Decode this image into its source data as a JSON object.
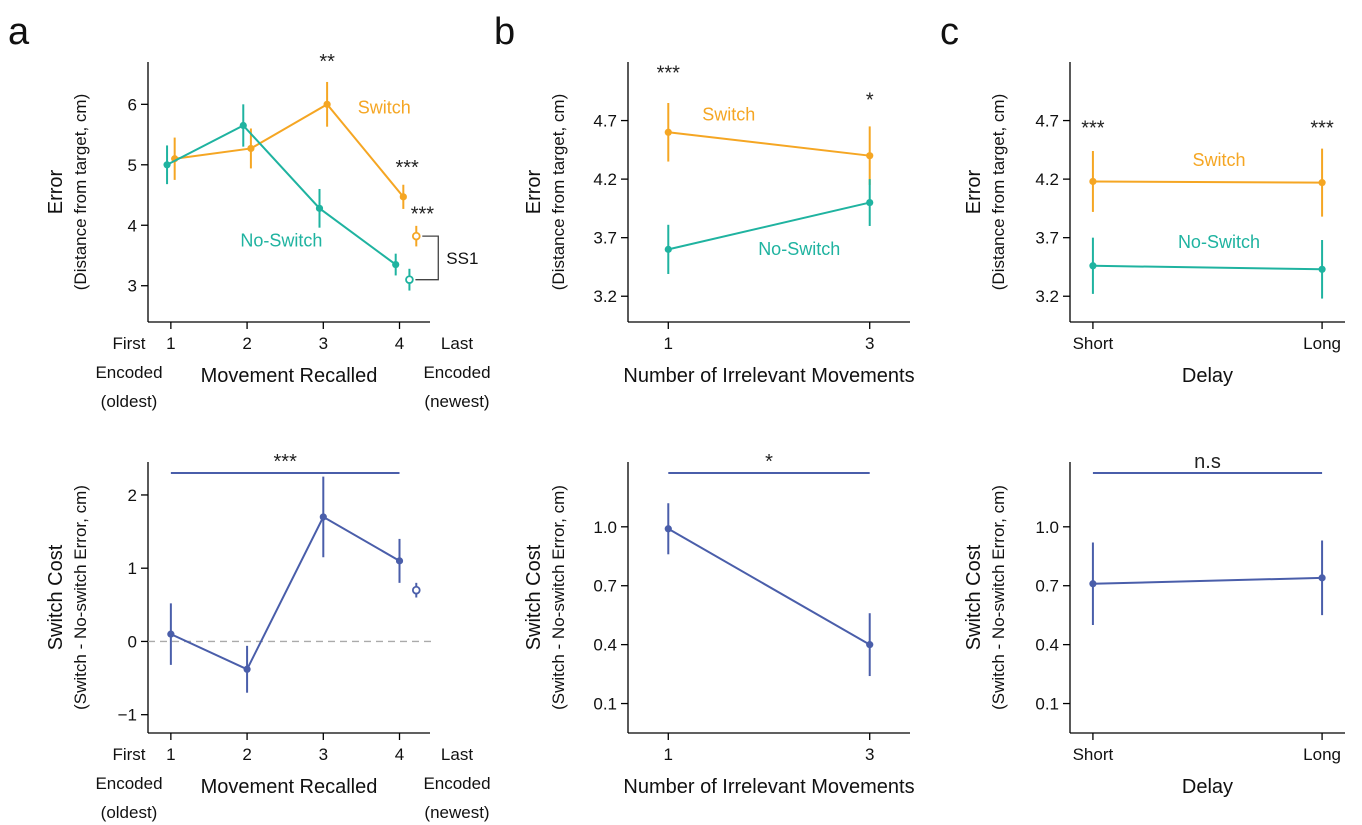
{
  "panel_letters": [
    "a",
    "b",
    "c"
  ],
  "colors": {
    "switch": "#f5a623",
    "noswitch": "#1fb3a0",
    "cost": "#4a5eaa",
    "zero_line": "#aaaaaa"
  },
  "chart_data": [
    {
      "id": "a_top",
      "type": "line",
      "panel": "a",
      "xlabel": "Movement Recalled",
      "ylabel": "Error",
      "ylabel2": "(Distance from target, cm)",
      "x": [
        1,
        2,
        3,
        4
      ],
      "xticks": [
        "1",
        "2",
        "3",
        "4"
      ],
      "xlim": [
        0.7,
        4.4
      ],
      "ylim": [
        2.4,
        6.7
      ],
      "yticks": [
        3,
        4,
        5,
        6
      ],
      "ytick_labels": [
        "3",
        "4",
        "5",
        "6"
      ],
      "extra_x_labels": {
        "left": [
          "First",
          "Encoded",
          "(oldest)"
        ],
        "right": [
          "Last",
          "Encoded",
          "(newest)"
        ]
      },
      "series": [
        {
          "name": "Switch",
          "color": "switch",
          "values": [
            5.1,
            5.27,
            6.0,
            4.47
          ],
          "err": [
            0.35,
            0.33,
            0.37,
            0.2
          ],
          "x_offset": 0.05
        },
        {
          "name": "No-Switch",
          "color": "noswitch",
          "values": [
            5.0,
            5.65,
            4.28,
            3.35
          ],
          "err": [
            0.32,
            0.35,
            0.32,
            0.18
          ],
          "x_offset": -0.05
        }
      ],
      "extra_points": [
        {
          "series": "Switch",
          "x": 4.22,
          "value": 3.82,
          "err": 0.17,
          "open": true
        },
        {
          "series": "No-Switch",
          "x": 4.13,
          "value": 3.1,
          "err": 0.18,
          "open": true
        }
      ],
      "annotations": [
        {
          "text": "**",
          "x": 3.05,
          "y": 6.6
        },
        {
          "text": "***",
          "x": 4.1,
          "y": 4.85
        },
        {
          "text": "***",
          "x": 4.3,
          "y": 4.08
        }
      ],
      "bracket_label": "SS1"
    },
    {
      "id": "a_bottom",
      "type": "line",
      "panel": "a",
      "xlabel": "Movement Recalled",
      "ylabel": "Switch Cost",
      "ylabel2": "(Switch - No-switch Error, cm)",
      "x": [
        1,
        2,
        3,
        4
      ],
      "xticks": [
        "1",
        "2",
        "3",
        "4"
      ],
      "xlim": [
        0.7,
        4.4
      ],
      "ylim": [
        -1.25,
        2.45
      ],
      "yticks": [
        -1,
        0,
        1,
        2
      ],
      "ytick_labels": [
        "−1",
        "0",
        "1",
        "2"
      ],
      "extra_x_labels": {
        "left": [
          "First",
          "Encoded",
          "(oldest)"
        ],
        "right": [
          "Last",
          "Encoded",
          "(newest)"
        ]
      },
      "series": [
        {
          "name": "",
          "color": "cost",
          "values": [
            0.1,
            -0.38,
            1.7,
            1.1
          ],
          "err": [
            0.42,
            0.32,
            0.55,
            0.3
          ]
        }
      ],
      "extra_points": [
        {
          "series": "",
          "x": 4.22,
          "value": 0.7,
          "err": 0.1,
          "open": true
        }
      ],
      "zero_line": true,
      "sig_bar": {
        "label": "***",
        "x1": 1,
        "x2": 4
      }
    },
    {
      "id": "b_top",
      "type": "line",
      "panel": "b",
      "xlabel": "Number of Irrelevant Movements",
      "ylabel": "Error",
      "ylabel2": "(Distance from target, cm)",
      "x": [
        1,
        3
      ],
      "xticks": [
        "1",
        "3"
      ],
      "xlim": [
        0.6,
        3.4
      ],
      "ylim": [
        2.98,
        5.2
      ],
      "yticks": [
        3.2,
        3.7,
        4.2,
        4.7
      ],
      "ytick_labels": [
        "3.2",
        "3.7",
        "4.2",
        "4.7"
      ],
      "series": [
        {
          "name": "Switch",
          "color": "switch",
          "values": [
            4.6,
            4.4
          ],
          "err": [
            0.25,
            0.25
          ]
        },
        {
          "name": "No-Switch",
          "color": "noswitch",
          "values": [
            3.6,
            4.0
          ],
          "err": [
            0.21,
            0.2
          ]
        }
      ],
      "annotations": [
        {
          "text": "***",
          "x": 1.0,
          "y": 5.05
        },
        {
          "text": "*",
          "x": 3.0,
          "y": 4.82
        }
      ]
    },
    {
      "id": "b_bottom",
      "type": "line",
      "panel": "b",
      "xlabel": "Number of Irrelevant Movements",
      "ylabel": "Switch Cost",
      "ylabel2": "(Switch - No-switch Error, cm)",
      "x": [
        1,
        3
      ],
      "xticks": [
        "1",
        "3"
      ],
      "xlim": [
        0.6,
        3.4
      ],
      "ylim": [
        -0.05,
        1.33
      ],
      "yticks": [
        0.1,
        0.4,
        0.7,
        1.0
      ],
      "ytick_labels": [
        "0.1",
        "0.4",
        "0.7",
        "1.0"
      ],
      "series": [
        {
          "name": "",
          "color": "cost",
          "values": [
            0.99,
            0.4
          ],
          "err": [
            0.13,
            0.16
          ]
        }
      ],
      "sig_bar": {
        "label": "*",
        "x1": 1,
        "x2": 3
      }
    },
    {
      "id": "c_top",
      "type": "line",
      "panel": "c",
      "xlabel": "Delay",
      "ylabel": "Error",
      "ylabel2": "(Distance from target, cm)",
      "x": [
        1,
        2
      ],
      "xticks": [
        "Short",
        "Long"
      ],
      "xlim": [
        0.9,
        2.1
      ],
      "ylim": [
        2.98,
        5.2
      ],
      "yticks": [
        3.2,
        3.7,
        4.2,
        4.7
      ],
      "ytick_labels": [
        "3.2",
        "3.7",
        "4.2",
        "4.7"
      ],
      "series": [
        {
          "name": "Switch",
          "color": "switch",
          "values": [
            4.18,
            4.17
          ],
          "err": [
            0.26,
            0.29
          ]
        },
        {
          "name": "No-Switch",
          "color": "noswitch",
          "values": [
            3.46,
            3.43
          ],
          "err": [
            0.24,
            0.25
          ]
        }
      ],
      "annotations": [
        {
          "text": "***",
          "x": 1.0,
          "y": 4.58
        },
        {
          "text": "***",
          "x": 2.0,
          "y": 4.58
        }
      ]
    },
    {
      "id": "c_bottom",
      "type": "line",
      "panel": "c",
      "xlabel": "Delay",
      "ylabel": "Switch Cost",
      "ylabel2": "(Switch - No-switch Error, cm)",
      "x": [
        1,
        2
      ],
      "xticks": [
        "Short",
        "Long"
      ],
      "xlim": [
        0.9,
        2.1
      ],
      "ylim": [
        -0.05,
        1.33
      ],
      "yticks": [
        0.1,
        0.4,
        0.7,
        1.0
      ],
      "ytick_labels": [
        "0.1",
        "0.4",
        "0.7",
        "1.0"
      ],
      "series": [
        {
          "name": "",
          "color": "cost",
          "values": [
            0.71,
            0.74
          ],
          "err": [
            0.21,
            0.19
          ]
        }
      ],
      "sig_bar": {
        "label": "n.s",
        "x1": 1,
        "x2": 2
      }
    }
  ]
}
